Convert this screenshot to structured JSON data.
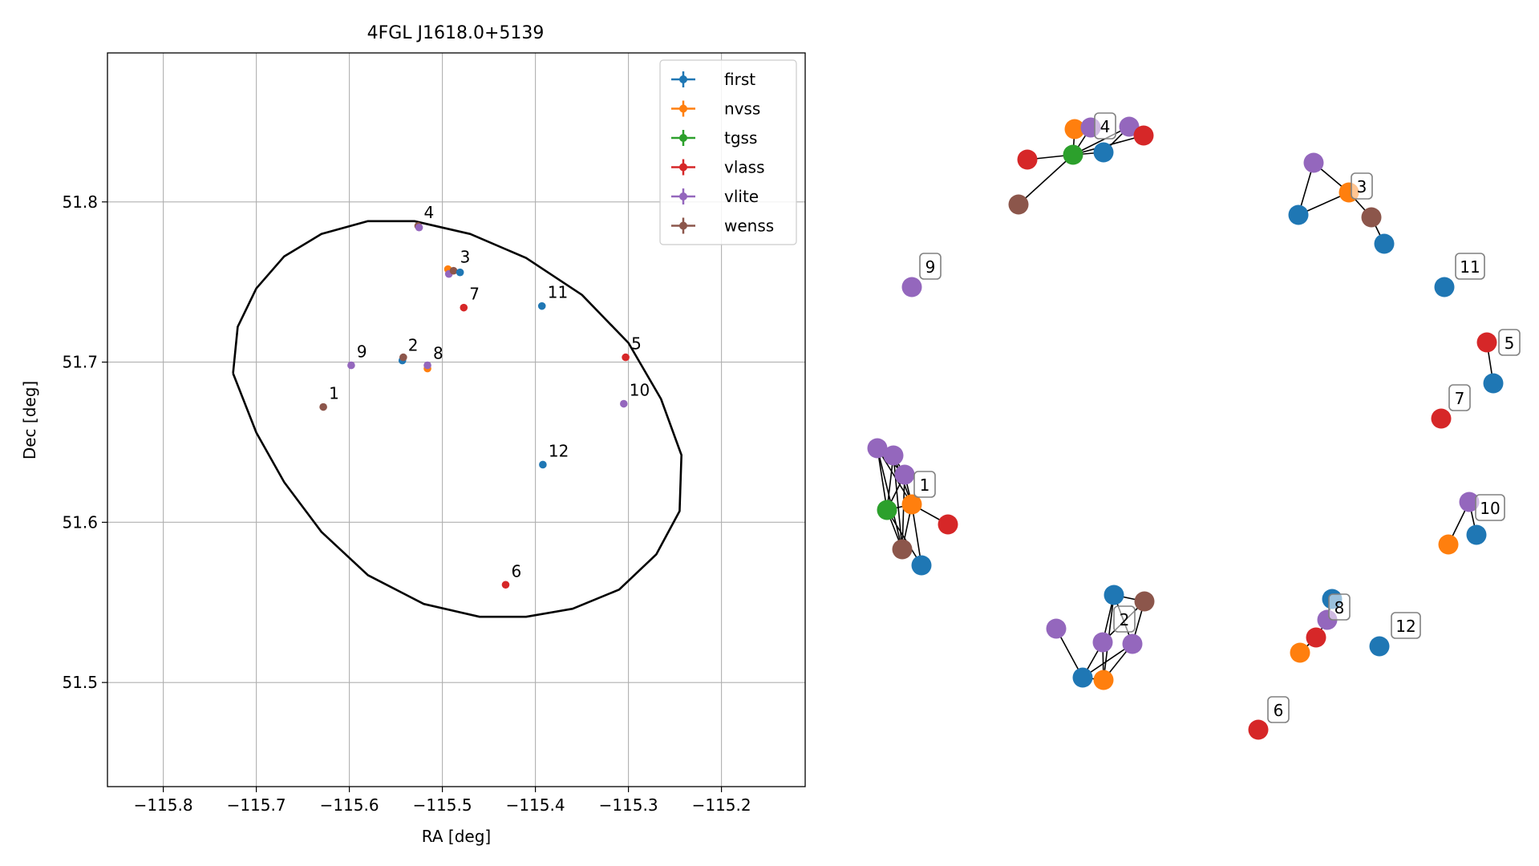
{
  "colors": {
    "first": "#1f77b4",
    "nvss": "#ff7f0e",
    "tgss": "#2ca02c",
    "vlass": "#d62728",
    "vlite": "#9467bd",
    "wenss": "#8c564b"
  },
  "chart_data": [
    {
      "type": "scatter",
      "title": "4FGL J1618.0+5139",
      "xlabel": "RA [deg]",
      "ylabel": "Dec [deg]",
      "xlim": [
        -115.86,
        -115.11
      ],
      "ylim": [
        51.435,
        51.893
      ],
      "xticks": [
        -115.8,
        -115.7,
        -115.6,
        -115.5,
        -115.4,
        -115.3,
        -115.2
      ],
      "xtick_labels": [
        "−115.8",
        "−115.7",
        "−115.6",
        "−115.5",
        "−115.4",
        "−115.3",
        "−115.2"
      ],
      "yticks": [
        51.5,
        51.6,
        51.7,
        51.8
      ],
      "ytick_labels": [
        "51.5",
        "51.6",
        "51.7",
        "51.8"
      ],
      "grid": true,
      "legend_position": "top-right",
      "legend": [
        "first",
        "nvss",
        "tgss",
        "vlass",
        "vlite",
        "wenss"
      ],
      "ellipse": [
        [
          -115.725,
          51.693
        ],
        [
          -115.72,
          51.722
        ],
        [
          -115.7,
          51.746
        ],
        [
          -115.67,
          51.766
        ],
        [
          -115.63,
          51.78
        ],
        [
          -115.58,
          51.788
        ],
        [
          -115.53,
          51.788
        ],
        [
          -115.47,
          51.78
        ],
        [
          -115.41,
          51.765
        ],
        [
          -115.35,
          51.742
        ],
        [
          -115.3,
          51.712
        ],
        [
          -115.265,
          51.677
        ],
        [
          -115.243,
          51.642
        ],
        [
          -115.245,
          51.607
        ],
        [
          -115.27,
          51.58
        ],
        [
          -115.31,
          51.558
        ],
        [
          -115.36,
          51.546
        ],
        [
          -115.41,
          51.541
        ],
        [
          -115.46,
          51.541
        ],
        [
          -115.52,
          51.549
        ],
        [
          -115.58,
          51.567
        ],
        [
          -115.63,
          51.594
        ],
        [
          -115.67,
          51.625
        ],
        [
          -115.7,
          51.656
        ],
        [
          -115.725,
          51.693
        ]
      ],
      "points": [
        {
          "survey": "wenss",
          "ra": -115.628,
          "dec": 51.672
        },
        {
          "survey": "vlite",
          "ra": -115.598,
          "dec": 51.698
        },
        {
          "survey": "first",
          "ra": -115.543,
          "dec": 51.701
        },
        {
          "survey": "wenss",
          "ra": -115.542,
          "dec": 51.703
        },
        {
          "survey": "nvss",
          "ra": -115.516,
          "dec": 51.696
        },
        {
          "survey": "vlite",
          "ra": -115.516,
          "dec": 51.698
        },
        {
          "survey": "wenss",
          "ra": -115.526,
          "dec": 51.785
        },
        {
          "survey": "vlite",
          "ra": -115.525,
          "dec": 51.784
        },
        {
          "survey": "nvss",
          "ra": -115.494,
          "dec": 51.758
        },
        {
          "survey": "vlite",
          "ra": -115.493,
          "dec": 51.755
        },
        {
          "survey": "wenss",
          "ra": -115.488,
          "dec": 51.757
        },
        {
          "survey": "first",
          "ra": -115.481,
          "dec": 51.756
        },
        {
          "survey": "vlass",
          "ra": -115.477,
          "dec": 51.734
        },
        {
          "survey": "first",
          "ra": -115.393,
          "dec": 51.735
        },
        {
          "survey": "vlass",
          "ra": -115.303,
          "dec": 51.703
        },
        {
          "survey": "vlite",
          "ra": -115.305,
          "dec": 51.674
        },
        {
          "survey": "first",
          "ra": -115.392,
          "dec": 51.636
        },
        {
          "survey": "vlass",
          "ra": -115.432,
          "dec": 51.561
        }
      ],
      "labels": [
        {
          "text": "1",
          "ra": -115.628,
          "dec": 51.672
        },
        {
          "text": "2",
          "ra": -115.543,
          "dec": 51.702
        },
        {
          "text": "3",
          "ra": -115.487,
          "dec": 51.757
        },
        {
          "text": "4",
          "ra": -115.526,
          "dec": 51.785
        },
        {
          "text": "5",
          "ra": -115.303,
          "dec": 51.703
        },
        {
          "text": "6",
          "ra": -115.432,
          "dec": 51.561
        },
        {
          "text": "7",
          "ra": -115.477,
          "dec": 51.734
        },
        {
          "text": "8",
          "ra": -115.516,
          "dec": 51.697
        },
        {
          "text": "9",
          "ra": -115.598,
          "dec": 51.698
        },
        {
          "text": "10",
          "ra": -115.305,
          "dec": 51.674
        },
        {
          "text": "11",
          "ra": -115.393,
          "dec": 51.735
        },
        {
          "text": "12",
          "ra": -115.392,
          "dec": 51.636
        }
      ]
    },
    {
      "type": "network",
      "groups": [
        {
          "label": "1",
          "label_anchor": "1n",
          "nodes": [
            {
              "id": "1a",
              "survey": "vlite"
            },
            {
              "id": "1b",
              "survey": "vlite"
            },
            {
              "id": "1c",
              "survey": "vlite"
            },
            {
              "id": "1n",
              "survey": "nvss"
            },
            {
              "id": "1t",
              "survey": "tgss"
            },
            {
              "id": "1r",
              "survey": "vlass"
            },
            {
              "id": "1w",
              "survey": "wenss"
            },
            {
              "id": "1f",
              "survey": "first"
            }
          ],
          "edges": [
            [
              "1a",
              "1b"
            ],
            [
              "1a",
              "1c"
            ],
            [
              "1a",
              "1t"
            ],
            [
              "1a",
              "1n"
            ],
            [
              "1a",
              "1w"
            ],
            [
              "1b",
              "1c"
            ],
            [
              "1b",
              "1t"
            ],
            [
              "1b",
              "1n"
            ],
            [
              "1b",
              "1w"
            ],
            [
              "1c",
              "1t"
            ],
            [
              "1c",
              "1n"
            ],
            [
              "1c",
              "1w"
            ],
            [
              "1t",
              "1n"
            ],
            [
              "1t",
              "1w"
            ],
            [
              "1t",
              "1f"
            ],
            [
              "1n",
              "1r"
            ],
            [
              "1n",
              "1f"
            ],
            [
              "1n",
              "1w"
            ]
          ]
        },
        {
          "label": "2",
          "label_anchor": "2x",
          "nodes": [
            {
              "id": "2v1",
              "survey": "vlite"
            },
            {
              "id": "2v2",
              "survey": "vlite"
            },
            {
              "id": "2v3",
              "survey": "vlite"
            },
            {
              "id": "2f1",
              "survey": "first"
            },
            {
              "id": "2f2",
              "survey": "first"
            },
            {
              "id": "2n",
              "survey": "nvss"
            },
            {
              "id": "2w",
              "survey": "wenss"
            }
          ],
          "edges": [
            [
              "2v1",
              "2f1"
            ],
            [
              "2f1",
              "2v2"
            ],
            [
              "2f1",
              "2n"
            ],
            [
              "2f1",
              "2v3"
            ],
            [
              "2v2",
              "2f2"
            ],
            [
              "2v2",
              "2w"
            ],
            [
              "2v2",
              "2n"
            ],
            [
              "2v3",
              "2f2"
            ],
            [
              "2v3",
              "2w"
            ],
            [
              "2v3",
              "2n"
            ],
            [
              "2f2",
              "2w"
            ],
            [
              "2f2",
              "2n"
            ]
          ]
        },
        {
          "label": "3",
          "label_anchor": "3n",
          "nodes": [
            {
              "id": "3v",
              "survey": "vlite"
            },
            {
              "id": "3n",
              "survey": "nvss"
            },
            {
              "id": "3f1",
              "survey": "first"
            },
            {
              "id": "3w",
              "survey": "wenss"
            },
            {
              "id": "3f2",
              "survey": "first"
            }
          ],
          "edges": [
            [
              "3v",
              "3n"
            ],
            [
              "3v",
              "3f1"
            ],
            [
              "3f1",
              "3n"
            ],
            [
              "3n",
              "3w"
            ],
            [
              "3w",
              "3f2"
            ]
          ]
        },
        {
          "label": "4",
          "label_anchor": "4v1",
          "nodes": [
            {
              "id": "4n",
              "survey": "nvss"
            },
            {
              "id": "4v1",
              "survey": "vlite"
            },
            {
              "id": "4v2",
              "survey": "vlite"
            },
            {
              "id": "4r1",
              "survey": "vlass"
            },
            {
              "id": "4t",
              "survey": "tgss"
            },
            {
              "id": "4f",
              "survey": "first"
            },
            {
              "id": "4r2",
              "survey": "vlass"
            },
            {
              "id": "4w",
              "survey": "wenss"
            }
          ],
          "edges": [
            [
              "4t",
              "4n"
            ],
            [
              "4t",
              "4v1"
            ],
            [
              "4t",
              "4v2"
            ],
            [
              "4t",
              "4f"
            ],
            [
              "4t",
              "4r1"
            ],
            [
              "4t",
              "4r2"
            ],
            [
              "4t",
              "4w"
            ],
            [
              "4n",
              "4v1"
            ],
            [
              "4f",
              "4v2"
            ]
          ]
        },
        {
          "label": "5",
          "label_anchor": "5r",
          "nodes": [
            {
              "id": "5r",
              "survey": "vlass"
            },
            {
              "id": "5f",
              "survey": "first"
            }
          ],
          "edges": [
            [
              "5r",
              "5f"
            ]
          ]
        },
        {
          "label": "6",
          "label_anchor": "6r",
          "nodes": [
            {
              "id": "6r",
              "survey": "vlass"
            }
          ],
          "edges": []
        },
        {
          "label": "7",
          "label_anchor": "7r",
          "nodes": [
            {
              "id": "7r",
              "survey": "vlass"
            }
          ],
          "edges": []
        },
        {
          "label": "8",
          "label_anchor": "8f",
          "nodes": [
            {
              "id": "8f",
              "survey": "first"
            },
            {
              "id": "8v",
              "survey": "vlite"
            },
            {
              "id": "8r",
              "survey": "vlass"
            },
            {
              "id": "8n",
              "survey": "nvss"
            }
          ],
          "edges": [
            [
              "8f",
              "8v"
            ],
            [
              "8v",
              "8r"
            ],
            [
              "8r",
              "8n"
            ]
          ]
        },
        {
          "label": "9",
          "label_anchor": "9v",
          "nodes": [
            {
              "id": "9v",
              "survey": "vlite"
            }
          ],
          "edges": []
        },
        {
          "label": "10",
          "label_anchor": "10v",
          "nodes": [
            {
              "id": "10v",
              "survey": "vlite"
            },
            {
              "id": "10f",
              "survey": "first"
            },
            {
              "id": "10n",
              "survey": "nvss"
            }
          ],
          "edges": [
            [
              "10v",
              "10f"
            ],
            [
              "10v",
              "10n"
            ]
          ]
        },
        {
          "label": "11",
          "label_anchor": "11f",
          "nodes": [
            {
              "id": "11f",
              "survey": "first"
            }
          ],
          "edges": []
        },
        {
          "label": "12",
          "label_anchor": "12f",
          "nodes": [
            {
              "id": "12f",
              "survey": "first"
            }
          ],
          "edges": []
        }
      ]
    }
  ]
}
